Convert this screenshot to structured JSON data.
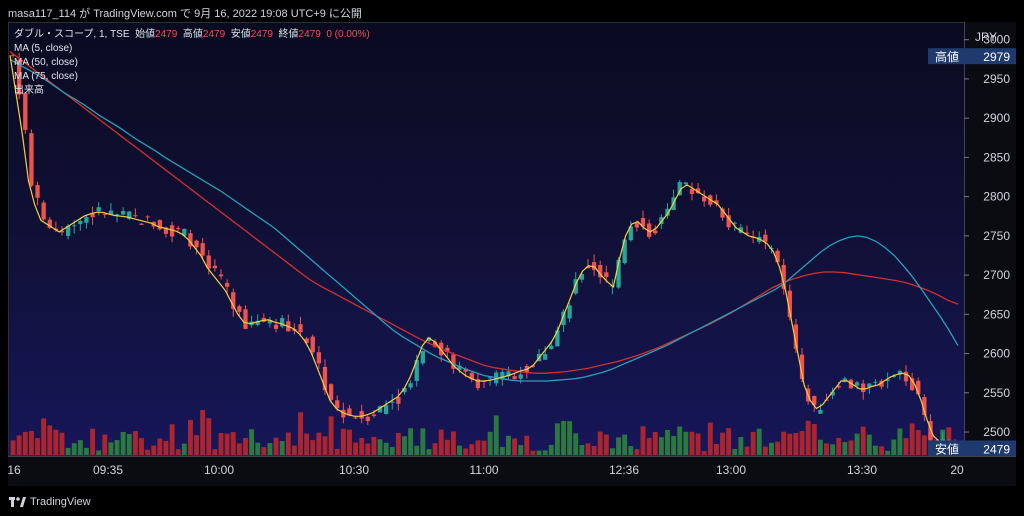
{
  "header": {
    "text": "masa117_114 が TradingView.com で 9月 16, 2022 19:08 UTC+9 に公開"
  },
  "legend": {
    "symbol": "ダブル・スコープ, 1, TSE",
    "open_label": "始値",
    "open_value": "2479",
    "high_label": "高値",
    "high_value": "2479",
    "low_label": "安値",
    "low_value": "2479",
    "close_label": "終値",
    "close_value": "2479",
    "change": "0 (0.00%)",
    "ma5": "MA (5, close)",
    "ma50": "MA (50, close)",
    "ma75": "MA (75, close)",
    "volume": "出来高"
  },
  "price_axis": {
    "currency": "JPY",
    "ticks": [
      "3000",
      "2950",
      "2900",
      "2850",
      "2800",
      "2750",
      "2700",
      "2650",
      "2600",
      "2550",
      "2500"
    ],
    "high_tag_label": "高値",
    "high_tag_value": "2979",
    "low_tag_label": "安値",
    "low_tag_value": "2479",
    "last_price": "2479"
  },
  "time_axis": {
    "ticks": [
      "16",
      "09:35",
      "10:00",
      "10:30",
      "11:00",
      "12:36",
      "13:00",
      "13:30",
      "20"
    ]
  },
  "footer": {
    "brand": "TradingView"
  },
  "colors": {
    "up": "#26a69a",
    "down": "#ef5350",
    "vol_up": "#2e8b3a",
    "vol_down": "#c62828",
    "ma5": "#f7d038",
    "ma50": "#26a0b8",
    "ma75": "#d32f2f",
    "high_tag": "#1e3a6e",
    "low_tag": "#1e3a6e",
    "last_price_tag": "#ef5350"
  },
  "chart_data": {
    "type": "candlestick",
    "y_range": [
      2472,
      3020
    ],
    "ma5_close": [
      2980,
      2930,
      2880,
      2820,
      2790,
      2770,
      2765,
      2760,
      2755,
      2760,
      2765,
      2770,
      2775,
      2778,
      2780,
      2780,
      2778,
      2776,
      2775,
      2774,
      2772,
      2770,
      2768,
      2766,
      2762,
      2760,
      2758,
      2756,
      2752,
      2745,
      2735,
      2725,
      2710,
      2700,
      2690,
      2680,
      2665,
      2650,
      2640,
      2638,
      2640,
      2642,
      2643,
      2640,
      2638,
      2635,
      2632,
      2625,
      2615,
      2600,
      2580,
      2560,
      2540,
      2530,
      2525,
      2522,
      2520,
      2520,
      2522,
      2525,
      2530,
      2535,
      2540,
      2545,
      2555,
      2570,
      2590,
      2610,
      2620,
      2615,
      2605,
      2595,
      2585,
      2578,
      2572,
      2568,
      2565,
      2565,
      2566,
      2568,
      2570,
      2572,
      2575,
      2578,
      2580,
      2585,
      2595,
      2605,
      2615,
      2630,
      2650,
      2670,
      2690,
      2705,
      2712,
      2710,
      2700,
      2692,
      2685,
      2720,
      2750,
      2765,
      2768,
      2760,
      2755,
      2760,
      2770,
      2780,
      2795,
      2810,
      2815,
      2810,
      2805,
      2800,
      2795,
      2790,
      2780,
      2770,
      2760,
      2755,
      2750,
      2748,
      2745,
      2740,
      2730,
      2710,
      2680,
      2640,
      2600,
      2560,
      2540,
      2530,
      2535,
      2545,
      2555,
      2565,
      2565,
      2560,
      2555,
      2555,
      2558,
      2560,
      2565,
      2570,
      2573,
      2575,
      2572,
      2560,
      2540,
      2515,
      2495,
      2488,
      2485,
      2482,
      2479
    ],
    "ma50_close": [
      2975,
      2968,
      2962,
      2955,
      2948,
      2940,
      2932,
      2925,
      2918,
      2910,
      2902,
      2895,
      2888,
      2880,
      2872,
      2865,
      2858,
      2850,
      2843,
      2836,
      2829,
      2822,
      2815,
      2808,
      2800,
      2792,
      2784,
      2776,
      2768,
      2760,
      2750,
      2740,
      2730,
      2720,
      2710,
      2700,
      2690,
      2680,
      2670,
      2660,
      2650,
      2640,
      2630,
      2622,
      2615,
      2608,
      2601,
      2595,
      2590,
      2585,
      2580,
      2576,
      2572,
      2570,
      2568,
      2566,
      2565,
      2565,
      2565,
      2565,
      2566,
      2567,
      2568,
      2570,
      2573,
      2576,
      2580,
      2585,
      2590,
      2595,
      2600,
      2605,
      2610,
      2616,
      2622,
      2628,
      2634,
      2640,
      2646,
      2652,
      2658,
      2664,
      2670,
      2676,
      2682,
      2690,
      2700,
      2710,
      2720,
      2730,
      2738,
      2744,
      2748,
      2750,
      2748,
      2743,
      2735,
      2725,
      2712,
      2698,
      2682,
      2665,
      2648,
      2630,
      2610
    ],
    "ma75_close": [
      2985,
      2975,
      2965,
      2955,
      2945,
      2935,
      2925,
      2915,
      2905,
      2895,
      2885,
      2875,
      2865,
      2855,
      2845,
      2835,
      2825,
      2815,
      2805,
      2795,
      2785,
      2775,
      2765,
      2755,
      2745,
      2735,
      2725,
      2715,
      2705,
      2695,
      2687,
      2680,
      2673,
      2666,
      2659,
      2652,
      2645,
      2638,
      2631,
      2624,
      2617,
      2611,
      2605,
      2600,
      2595,
      2590,
      2585,
      2582,
      2580,
      2578,
      2576,
      2575,
      2575,
      2576,
      2577,
      2579,
      2581,
      2584,
      2587,
      2590,
      2594,
      2598,
      2603,
      2608,
      2614,
      2620,
      2626,
      2632,
      2638,
      2645,
      2652,
      2660,
      2668,
      2676,
      2684,
      2690,
      2695,
      2699,
      2702,
      2704,
      2704,
      2703,
      2701,
      2699,
      2697,
      2695,
      2693,
      2690,
      2686,
      2681,
      2675,
      2668,
      2663
    ]
  }
}
